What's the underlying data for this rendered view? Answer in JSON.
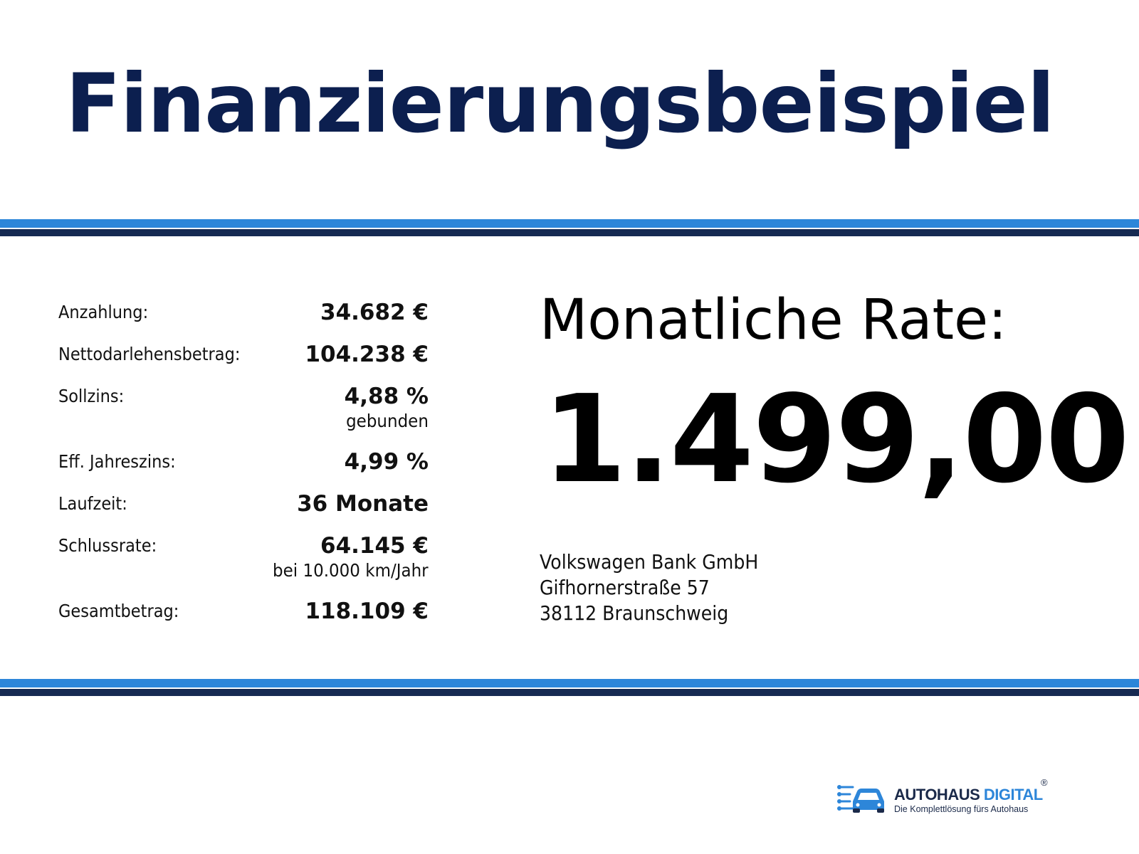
{
  "title": "Finanzierungsbeispiel",
  "terms": [
    {
      "label": "Anzahlung:",
      "value": "34.682 €"
    },
    {
      "label": "Nettodarlehensbetrag:",
      "value": "104.238 €"
    },
    {
      "label": "Sollzins:",
      "value": "4,88 %",
      "note": "gebunden"
    },
    {
      "label": "Eff. Jahreszins:",
      "value": "4,99 %"
    },
    {
      "label": "Laufzeit:",
      "value": "36 Monate"
    },
    {
      "label": "Schlussrate:",
      "value": "64.145 €",
      "note": "bei 10.000 km/Jahr"
    },
    {
      "label": "Gesamtbetrag:",
      "value": "118.109 €"
    }
  ],
  "monthly_rate": {
    "heading": "Monatliche Rate:",
    "value": "1.499,00"
  },
  "bank": {
    "name": "Volkswagen Bank GmbH",
    "street": "Gifhornerstraße 57",
    "city": "38112 Braunschweig"
  },
  "brand": {
    "name_part1": "AUTOHAUS",
    "name_part2": "DIGITAL",
    "registered_mark": "®",
    "tagline": "Die Komplettlösung fürs Autohaus",
    "icon": "car-circuit-icon"
  },
  "colors": {
    "title": "#0c1f4f",
    "stripe_light": "#2d86d9",
    "stripe_dark": "#162a52",
    "brand_dark": "#1b2a4a",
    "brand_accent": "#2d86d9"
  }
}
